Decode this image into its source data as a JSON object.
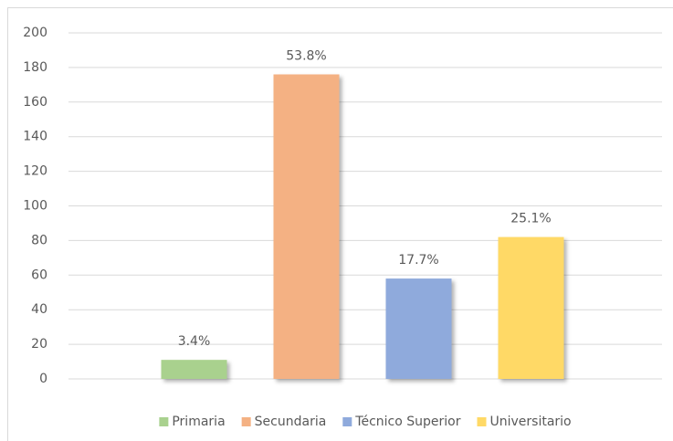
{
  "chart_data": {
    "type": "bar",
    "categories": [
      null
    ],
    "series": [
      {
        "name": "Primaria",
        "color": "#a9d18e",
        "values": [
          11
        ],
        "value_labels": [
          "3.4%"
        ]
      },
      {
        "name": "Secundaria",
        "color": "#f4b183",
        "values": [
          176
        ],
        "value_labels": [
          "53.8%"
        ]
      },
      {
        "name": "Técnico Superior",
        "color": "#8faadc",
        "values": [
          58
        ],
        "value_labels": [
          "17.7%"
        ]
      },
      {
        "name": "Universitario",
        "color": "#ffd966",
        "values": [
          82
        ],
        "value_labels": [
          "25.1%"
        ]
      }
    ],
    "ylim": [
      0,
      200
    ],
    "yticks": [
      0,
      20,
      40,
      60,
      80,
      100,
      120,
      140,
      160,
      180,
      200
    ],
    "grid": true,
    "legend": "bottom"
  }
}
